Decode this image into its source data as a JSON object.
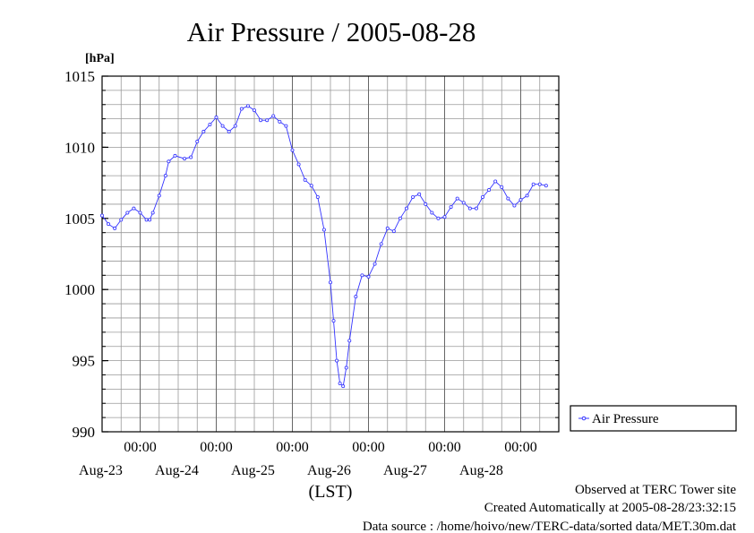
{
  "colors": {
    "series": "#3333ff",
    "grid": "#999999",
    "axis": "#000000"
  },
  "chart_data": {
    "type": "line",
    "title": "Air Pressure / 2005-08-28",
    "ylabel": "[hPa]",
    "xlabel": "(LST)",
    "ylim": [
      990,
      1015
    ],
    "yticks": [
      990,
      995,
      1000,
      1005,
      1010,
      1015
    ],
    "y_minor_step": 1,
    "x_unit": "hours since 2005-08-22 12:00",
    "xlim": [
      0,
      144
    ],
    "x_major_ticks": [
      {
        "x": 12,
        "time": "00:00",
        "day": "Aug-23"
      },
      {
        "x": 36,
        "time": "00:00",
        "day": "Aug-24"
      },
      {
        "x": 60,
        "time": "00:00",
        "day": "Aug-25"
      },
      {
        "x": 84,
        "time": "00:00",
        "day": "Aug-26"
      },
      {
        "x": 108,
        "time": "00:00",
        "day": "Aug-27"
      },
      {
        "x": 132,
        "time": "00:00",
        "day": "Aug-28"
      }
    ],
    "x_minor_step": 6,
    "grid": true,
    "legend_position": "right",
    "series": [
      {
        "name": "Air Pressure",
        "marker": "circle",
        "points": [
          [
            0,
            1005.2
          ],
          [
            2,
            1004.6
          ],
          [
            4,
            1004.3
          ],
          [
            6,
            1004.9
          ],
          [
            8,
            1005.4
          ],
          [
            10,
            1005.7
          ],
          [
            12,
            1005.4
          ],
          [
            14,
            1004.9
          ],
          [
            15,
            1004.9
          ],
          [
            16,
            1005.4
          ],
          [
            18,
            1006.6
          ],
          [
            20,
            1008.0
          ],
          [
            21,
            1009.0
          ],
          [
            23,
            1009.4
          ],
          [
            26,
            1009.2
          ],
          [
            28,
            1009.3
          ],
          [
            30,
            1010.4
          ],
          [
            32,
            1011.1
          ],
          [
            34,
            1011.6
          ],
          [
            36,
            1012.1
          ],
          [
            38,
            1011.5
          ],
          [
            40,
            1011.1
          ],
          [
            42,
            1011.5
          ],
          [
            44,
            1012.7
          ],
          [
            46,
            1012.9
          ],
          [
            48,
            1012.6
          ],
          [
            50,
            1011.9
          ],
          [
            52,
            1011.9
          ],
          [
            54,
            1012.2
          ],
          [
            56,
            1011.8
          ],
          [
            58,
            1011.5
          ],
          [
            60,
            1009.8
          ],
          [
            62,
            1008.8
          ],
          [
            64,
            1007.7
          ],
          [
            66,
            1007.3
          ],
          [
            68,
            1006.5
          ],
          [
            70,
            1004.2
          ],
          [
            72,
            1000.5
          ],
          [
            73,
            997.8
          ],
          [
            74,
            995.0
          ],
          [
            75,
            993.4
          ],
          [
            76,
            993.2
          ],
          [
            77,
            994.5
          ],
          [
            78,
            996.4
          ],
          [
            80,
            999.5
          ],
          [
            82,
            1001.0
          ],
          [
            84,
            1000.9
          ],
          [
            86,
            1001.8
          ],
          [
            88,
            1003.2
          ],
          [
            90,
            1004.3
          ],
          [
            92,
            1004.1
          ],
          [
            94,
            1005.0
          ],
          [
            96,
            1005.7
          ],
          [
            98,
            1006.5
          ],
          [
            100,
            1006.7
          ],
          [
            102,
            1006.0
          ],
          [
            104,
            1005.4
          ],
          [
            106,
            1005.0
          ],
          [
            108,
            1005.1
          ],
          [
            110,
            1005.8
          ],
          [
            112,
            1006.4
          ],
          [
            114,
            1006.1
          ],
          [
            116,
            1005.7
          ],
          [
            118,
            1005.7
          ],
          [
            120,
            1006.5
          ],
          [
            122,
            1007.0
          ],
          [
            124,
            1007.6
          ],
          [
            126,
            1007.2
          ],
          [
            128,
            1006.4
          ],
          [
            130,
            1005.9
          ],
          [
            132,
            1006.3
          ],
          [
            134,
            1006.6
          ],
          [
            136,
            1007.4
          ],
          [
            138,
            1007.4
          ],
          [
            140,
            1007.3
          ]
        ]
      }
    ]
  },
  "footer": {
    "line1": "Observed at TERC Tower site",
    "line2": "Created Automatically at 2005-08-28/23:32:15",
    "line3": "Data source : /home/hoivo/new/TERC-data/sorted  data/MET.30m.dat"
  }
}
